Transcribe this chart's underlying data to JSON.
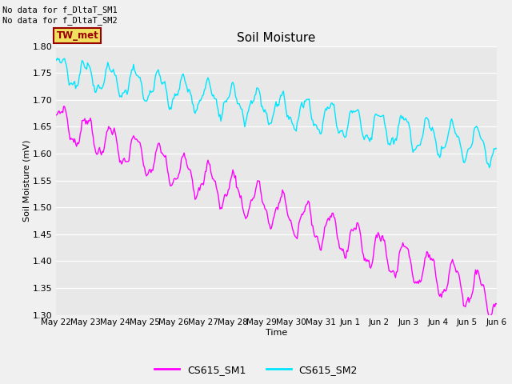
{
  "title": "Soil Moisture",
  "xlabel": "Time",
  "ylabel": "Soil Moisture (mV)",
  "ylim": [
    1.3,
    1.8
  ],
  "bg_color": "#e8e8e8",
  "fig_color": "#f0f0f0",
  "annotations": [
    "No data for f_DltaT_SM1",
    "No data for f_DltaT_SM2"
  ],
  "tw_met_label": "TW_met",
  "tw_met_bg": "#f0e060",
  "tw_met_fg": "#990000",
  "legend_labels": [
    "CS615_SM1",
    "CS615_SM2"
  ],
  "line1_color": "#ff00ff",
  "line2_color": "#00e5ff",
  "x_tick_labels": [
    "May 22",
    "May 23",
    "May 24",
    "May 25",
    "May 26",
    "May 27",
    "May 28",
    "May 29",
    "May 30",
    "May 31",
    "Jun 1",
    "Jun 2",
    "Jun 3",
    "Jun 4",
    "Jun 5",
    "Jun 6"
  ],
  "num_points": 480
}
